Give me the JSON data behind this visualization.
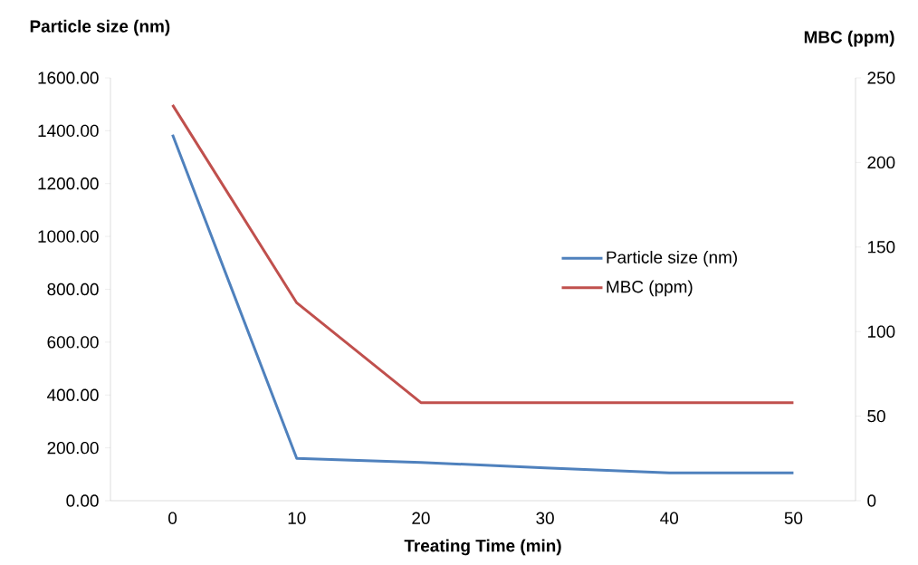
{
  "chart_data": {
    "type": "line",
    "ylabel": "Particle size (nm)",
    "y2label": "MBC (ppm)",
    "xlabel": "Treating Time (min)",
    "categories": [
      "0",
      "10",
      "20",
      "30",
      "40",
      "50"
    ],
    "series": [
      {
        "name": "Particle size (nm)",
        "color": "#4f81bd",
        "values": [
          1385,
          160,
          145,
          124,
          105,
          105
        ]
      },
      {
        "name": "MBC (ppm)",
        "color": "#c0504d",
        "axis": "y2",
        "values": [
          234,
          117,
          58,
          58,
          58,
          58
        ]
      }
    ],
    "ylim": [
      0,
      1600
    ],
    "yticks": [
      {
        "value": 0,
        "label": "0.00"
      },
      {
        "value": 200,
        "label": "200.00"
      },
      {
        "value": 400,
        "label": "400.00"
      },
      {
        "value": 600,
        "label": "600.00"
      },
      {
        "value": 800,
        "label": "800.00"
      },
      {
        "value": 1000,
        "label": "1000.00"
      },
      {
        "value": 1200,
        "label": "1200.00"
      },
      {
        "value": 1400,
        "label": "1400.00"
      },
      {
        "value": 1600,
        "label": "1600.00"
      }
    ],
    "y2lim": [
      0,
      250
    ],
    "y2ticks": [
      0,
      50,
      100,
      150,
      200,
      250
    ],
    "legend": "right"
  }
}
